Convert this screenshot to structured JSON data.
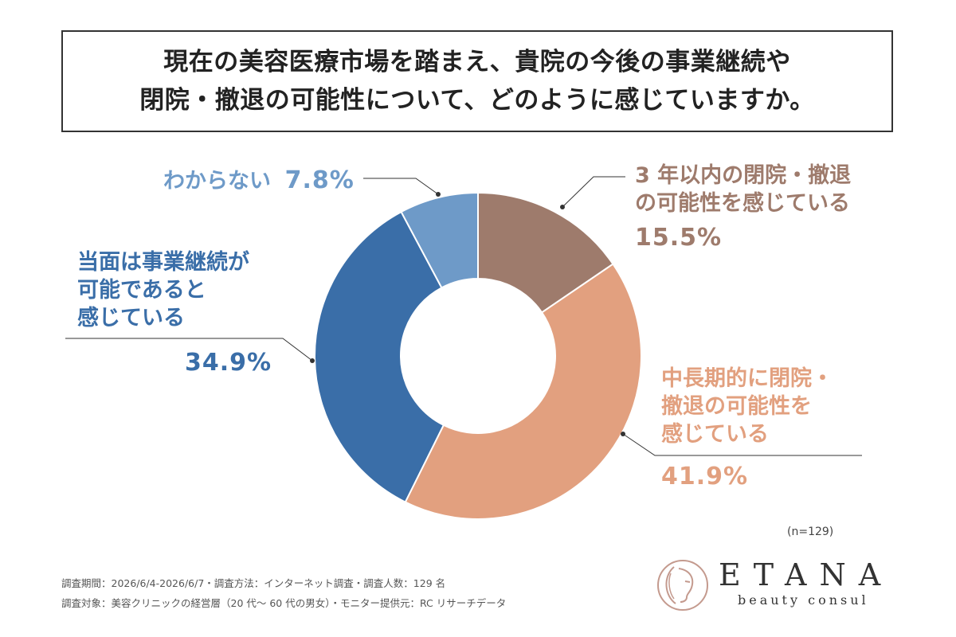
{
  "title": {
    "line1": "現在の美容医療市場を踏まえ、貴院の今後の事業継続や",
    "line2": "閉院・撤退の可能性について、どのように感じていますか。"
  },
  "chart_data": {
    "type": "pie",
    "slices": [
      {
        "label_lines": [
          "3 年以内の閉院・撤退",
          "の可能性を感じている"
        ],
        "value": 15.5,
        "pct_text": "15.5%",
        "color": "#9e7b6c"
      },
      {
        "label_lines": [
          "中長期的に閉院・",
          "撤退の可能性を",
          "感じている"
        ],
        "value": 41.9,
        "pct_text": "41.9%",
        "color": "#e2a07f"
      },
      {
        "label_lines": [
          "当面は事業継続が",
          "可能であると",
          "感じている"
        ],
        "value": 34.9,
        "pct_text": "34.9%",
        "color": "#3a6ea8"
      },
      {
        "label_lines": [
          "わからない"
        ],
        "value": 7.8,
        "pct_text": "7.8%",
        "color": "#6e9ac8"
      }
    ],
    "sample_size": "(n=129)"
  },
  "colors": {
    "label_brown": "#9e7b6c",
    "label_orange": "#e2a07f",
    "label_blue": "#3a6ea8",
    "label_lightblue": "#6e9ac8"
  },
  "footnotes": {
    "line1": "調査期間：2026/6/4-2026/6/7・調査方法：インターネット調査・調査人数：129 名",
    "line2": "調査対象：美容クリニックの経営層（20 代〜 60 代の男女）・モニター提供元：RC リサーチデータ"
  },
  "brand": {
    "name": "ETANA",
    "tagline": "beauty consul"
  }
}
